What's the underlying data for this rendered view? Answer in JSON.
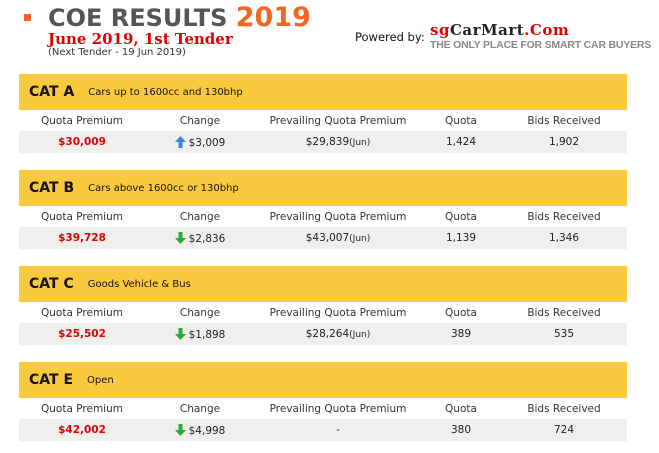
{
  "header": {
    "title": "COE RESULTS",
    "year": "2019",
    "subtitle": "June 2019, 1st Tender",
    "next_tender": "(Next Tender - 19 Jun 2019)",
    "powered_by": "Powered by:",
    "logo_brand_prefix": "sg",
    "logo_brand_main": "CarMart",
    "logo_brand_suffix": ".Com",
    "logo_tagline": "THE ONLY PLACE FOR SMART CAR BUYERS"
  },
  "columns": [
    "Quota Premium",
    "Change",
    "Prevailing Quota Premium",
    "Quota",
    "Bids Received"
  ],
  "categories": [
    {
      "name": "CAT A",
      "description": "Cars up to 1600cc and 130bhp",
      "premium": "$30,009",
      "change": "$3,009",
      "direction": "up",
      "prevailing": "$29,839",
      "prevailing_month": "(Jun)",
      "quota": "1,424",
      "bids": "1,902"
    },
    {
      "name": "CAT B",
      "description": "Cars above 1600cc or 130bhp",
      "premium": "$39,728",
      "change": "$2,836",
      "direction": "down",
      "prevailing": "$43,007",
      "prevailing_month": "(Jun)",
      "quota": "1,139",
      "bids": "1,346"
    },
    {
      "name": "CAT C",
      "description": "Goods Vehicle & Bus",
      "premium": "$25,502",
      "change": "$1,898",
      "direction": "down",
      "prevailing": "$28,264",
      "prevailing_month": "(Jun)",
      "quota": "389",
      "bids": "535"
    },
    {
      "name": "CAT E",
      "description": "Open",
      "premium": "$42,002",
      "change": "$4,998",
      "direction": "down",
      "prevailing": "-",
      "prevailing_month": "",
      "quota": "380",
      "bids": "724"
    }
  ],
  "colors": {
    "accent": "#f26522",
    "band": "#fbc93d",
    "premium": "#e00000",
    "up_arrow": "#3a86d8",
    "down_arrow": "#2eaa3a"
  }
}
